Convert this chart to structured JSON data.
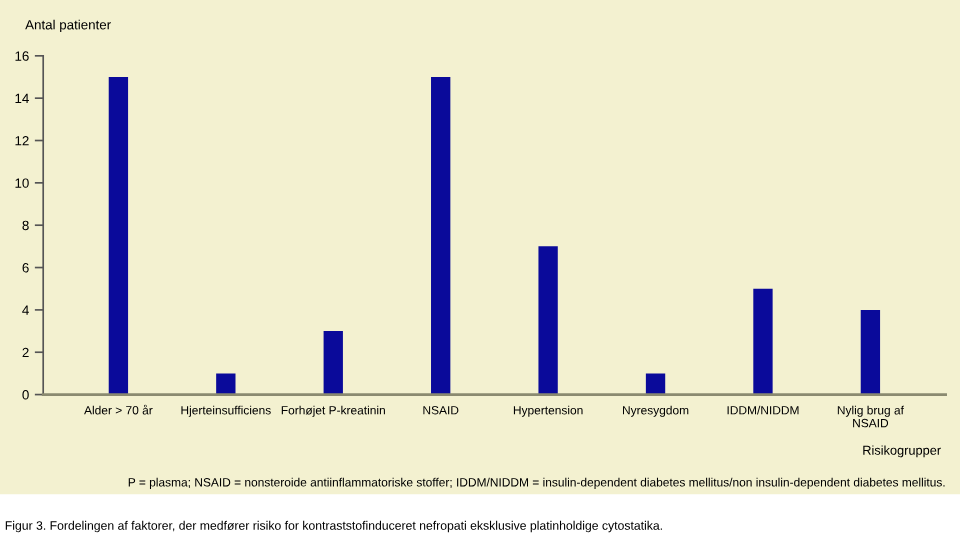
{
  "chart_data": {
    "type": "bar",
    "categories": [
      "Alder > 70 år",
      "Hjerteinsufficiens",
      "Forhøjet P-kreatinin",
      "NSAID",
      "Hypertension",
      "Nyresygdom",
      "IDDM/NIDDM",
      "Nylig brug af\nNSAID"
    ],
    "values": [
      15,
      1,
      3,
      15,
      7,
      1,
      5,
      4
    ],
    "color": "#0a0a9a",
    "ylabel": "Antal patienter",
    "xlabel": "Risikogrupper",
    "ylim": [
      0,
      16
    ],
    "yticks": [
      0,
      2,
      4,
      6,
      8,
      10,
      12,
      14,
      16
    ],
    "grid": false,
    "legend": false,
    "annotations": [
      "P = plasma; NSAID = nonsteroide antiinflammatoriske stoffer; IDDM/NIDDM = insulin-dependent diabetes mellitus/non insulin-dependent diabetes mellitus.",
      "Figur 3. Fordelingen af faktorer, der medfører risiko for kontraststofinduceret nefropati eksklusive platinholdige cytostatika."
    ]
  }
}
